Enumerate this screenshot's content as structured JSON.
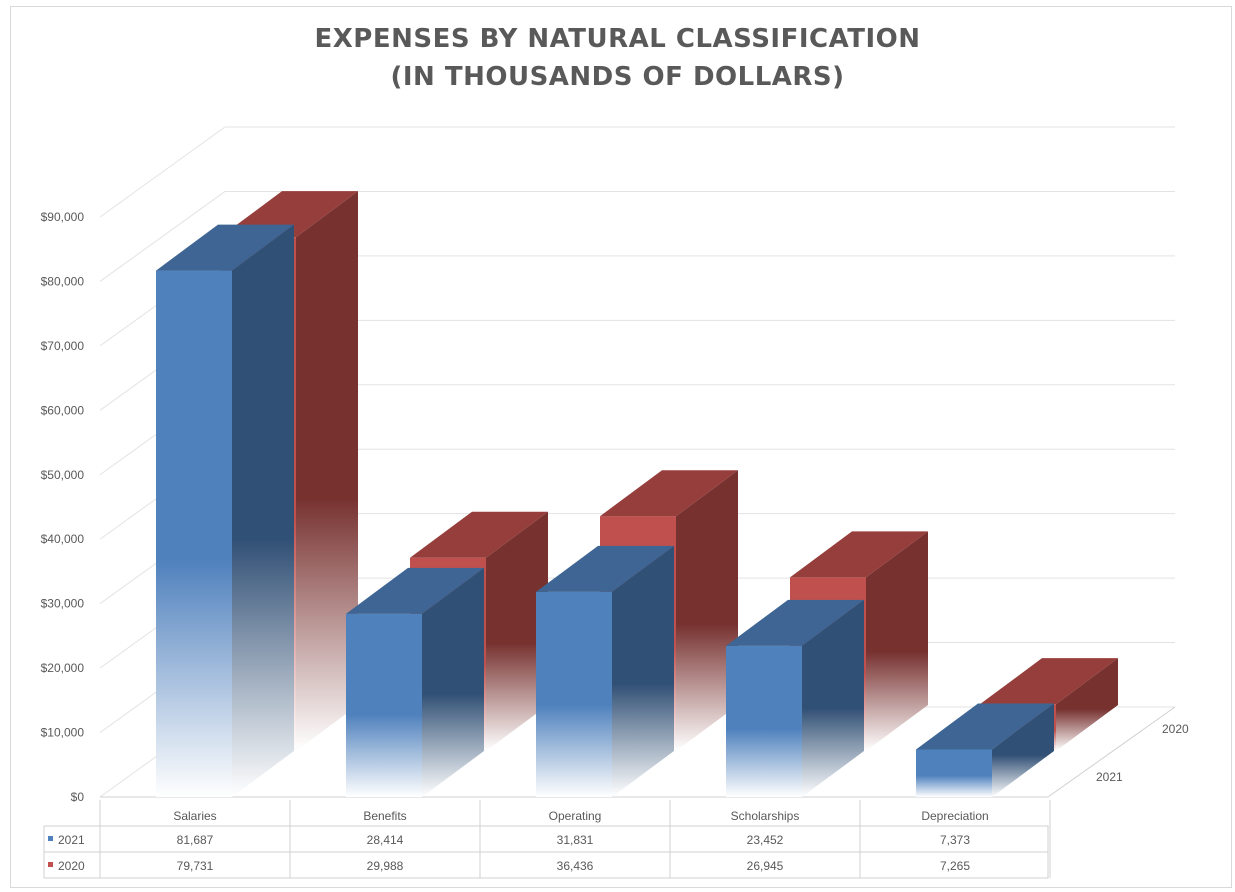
{
  "title_line1": "EXPENSES BY NATURAL CLASSIFICATION",
  "title_line2": "(IN THOUSANDS OF DOLLARS)",
  "colors": {
    "2021": "#4F81BD",
    "2020": "#C0504D",
    "grid": "#e3e3e3",
    "text": "#595959"
  },
  "chart_data": {
    "type": "bar",
    "title": "EXPENSES BY NATURAL CLASSIFICATION (IN THOUSANDS OF DOLLARS)",
    "categories": [
      "Salaries",
      "Benefits",
      "Operating",
      "Scholarships",
      "Depreciation"
    ],
    "series": [
      {
        "name": "2021",
        "values": [
          81687,
          28414,
          31831,
          23452,
          7373
        ],
        "labels": [
          "81,687",
          "28,414",
          "31,831",
          "23,452",
          "7,373"
        ]
      },
      {
        "name": "2020",
        "values": [
          79731,
          29988,
          36436,
          26945,
          7265
        ],
        "labels": [
          "79,731",
          "29,988",
          "36,436",
          "26,945",
          "7,265"
        ]
      }
    ],
    "ylim": [
      0,
      90000
    ],
    "yticks": [
      "$0",
      "$10,000",
      "$20,000",
      "$30,000",
      "$40,000",
      "$50,000",
      "$60,000",
      "$70,000",
      "$80,000",
      "$90,000"
    ],
    "depth_labels": [
      "2020",
      "2021"
    ],
    "grid": true,
    "legend": "data table",
    "style": "3d-column"
  }
}
